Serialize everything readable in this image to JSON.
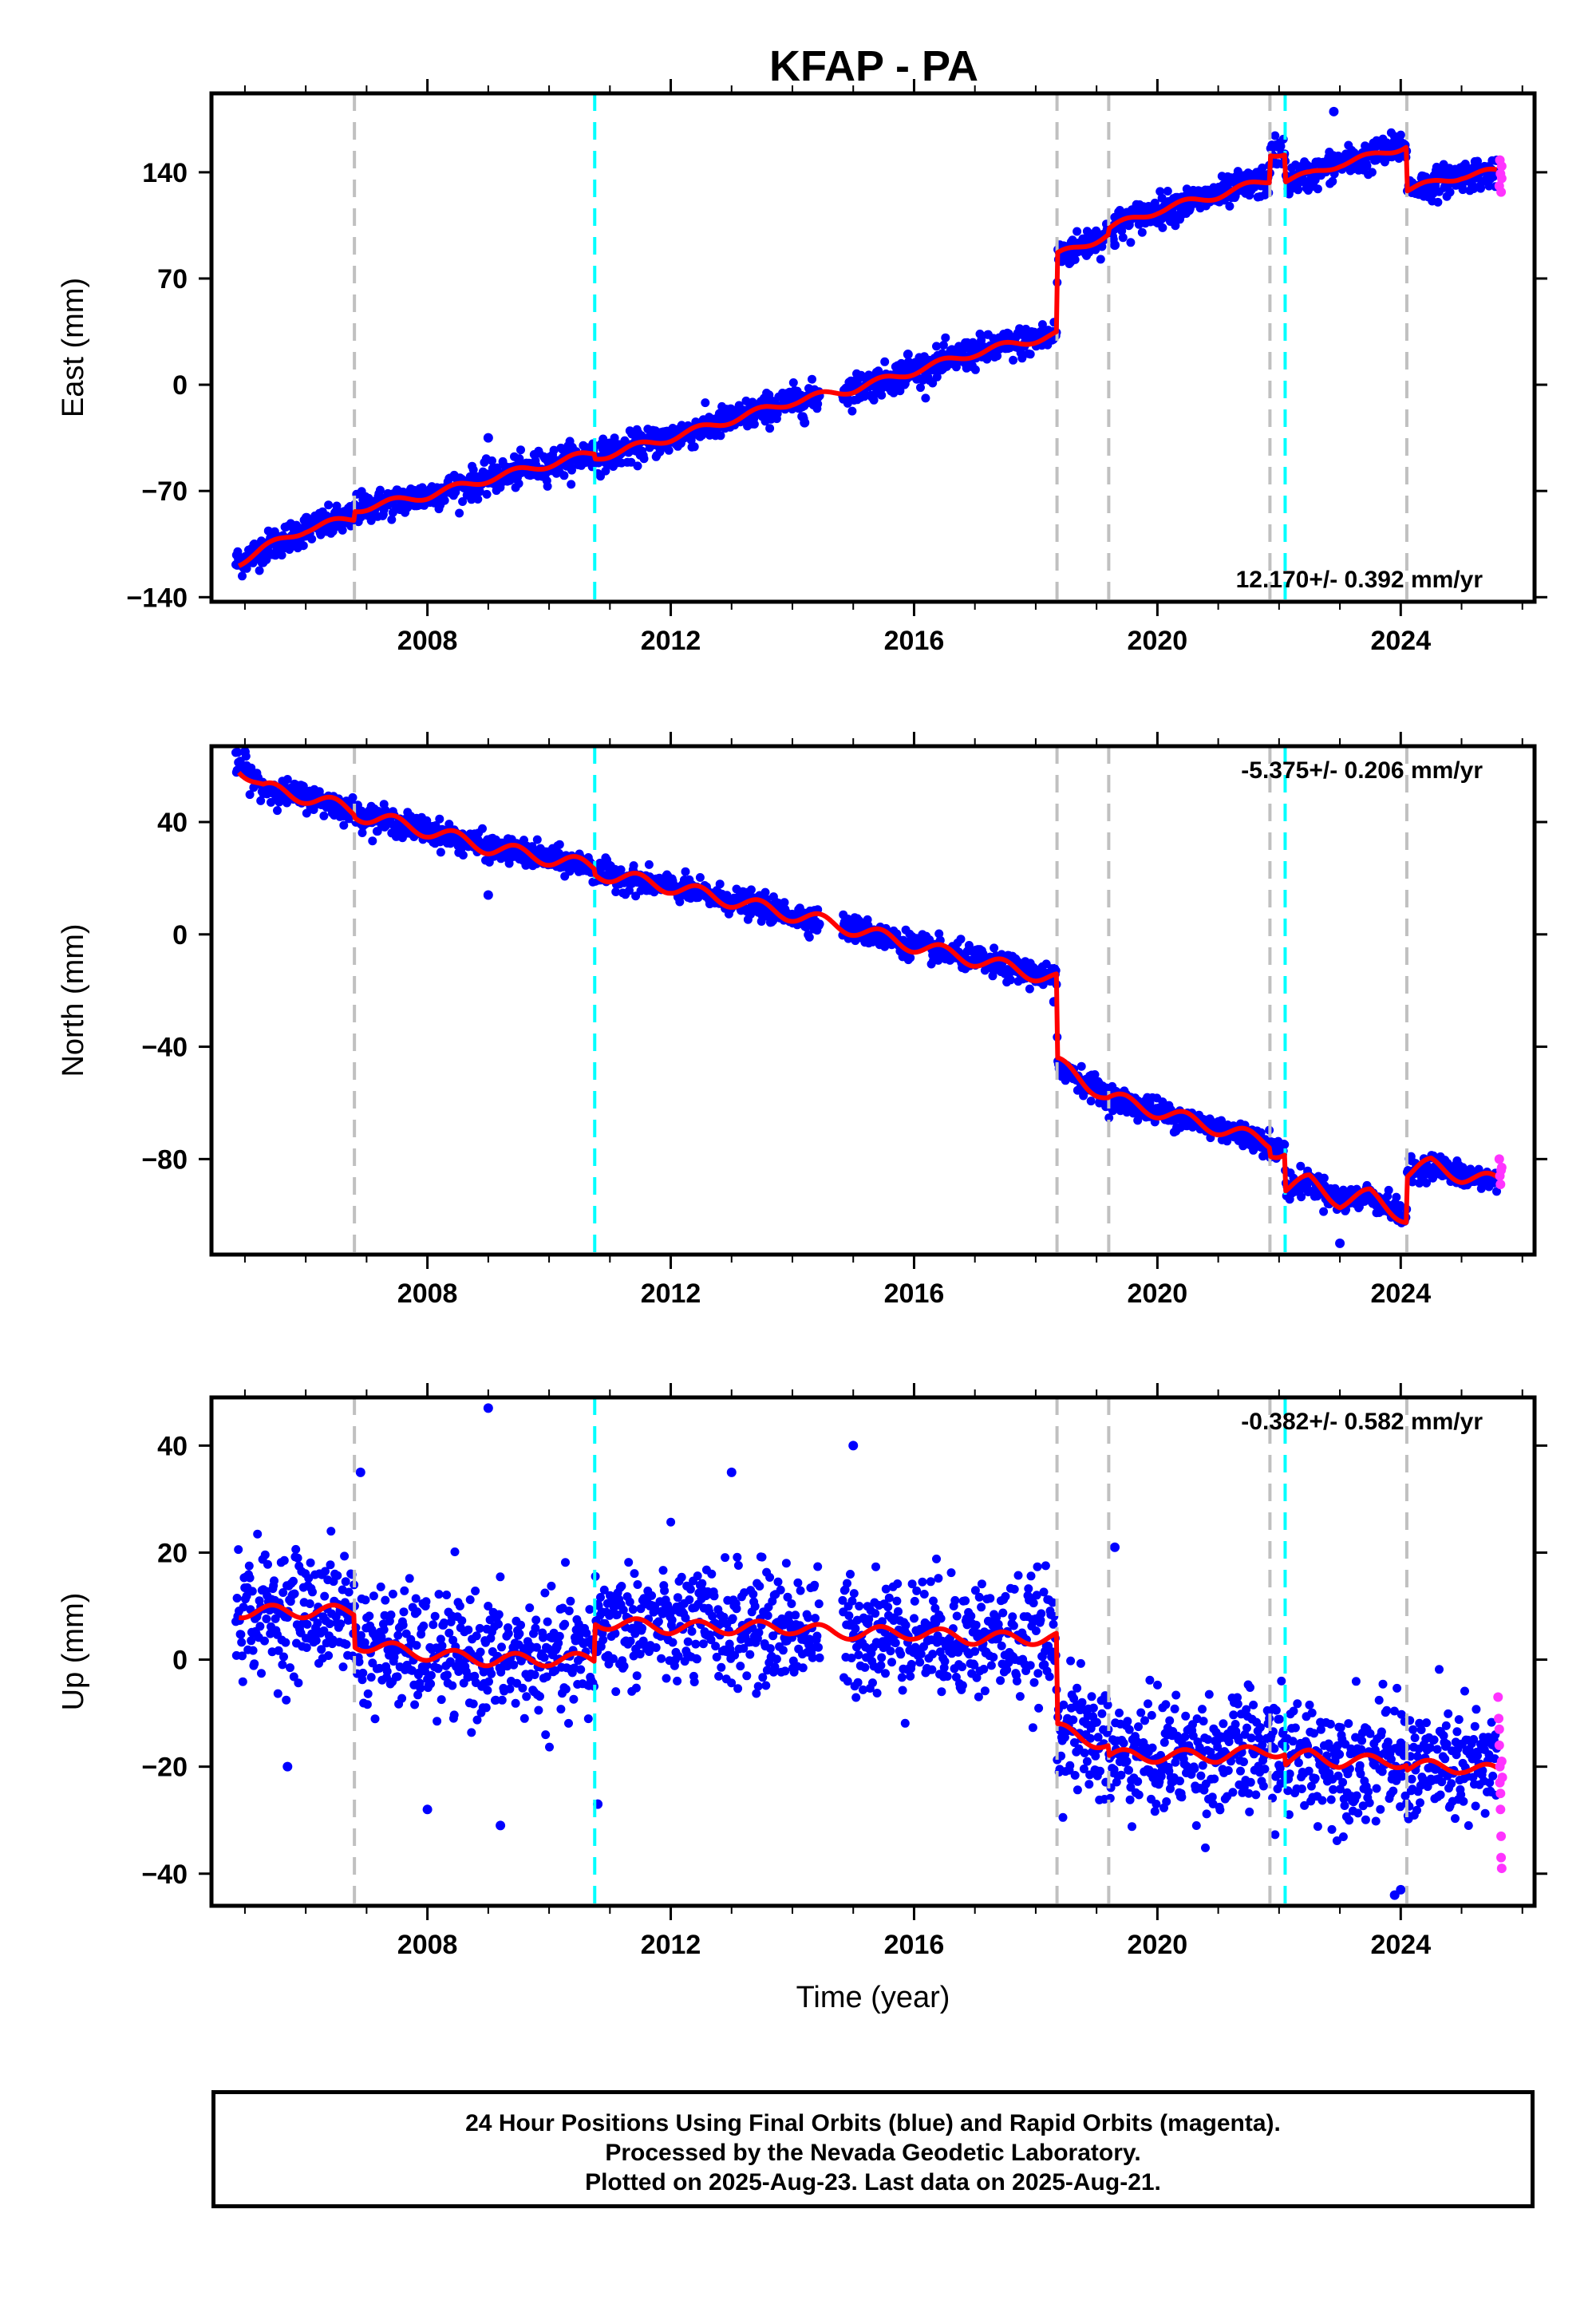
{
  "title": "KFAP - PA",
  "colors": {
    "final_orbits": "#0000ff",
    "rapid_orbits": "#ff33ff",
    "model": "#ff0000",
    "equipment_change": "#c0c0c0",
    "earthquake": "#00ffff"
  },
  "x_axis": {
    "label": "Time (year)",
    "range": [
      2004.45,
      2026.2
    ],
    "major_ticks": [
      2008,
      2012,
      2016,
      2020,
      2024
    ],
    "minor_ticks": [
      2005,
      2006,
      2007,
      2009,
      2010,
      2011,
      2013,
      2014,
      2015,
      2017,
      2018,
      2019,
      2021,
      2022,
      2023,
      2025,
      2026
    ]
  },
  "event_lines": {
    "gray": [
      2006.8,
      2018.35,
      2019.2,
      2021.85
    ],
    "cyan": [
      2010.75,
      2022.1
    ],
    "gray_late": [
      2024.1
    ]
  },
  "footer": {
    "line1": "24 Hour Positions Using Final Orbits (blue) and Rapid Orbits (magenta).",
    "line2": "Processed by the Nevada Geodetic Laboratory.",
    "line3": "Plotted on 2025-Aug-23. Last data on 2025-Aug-21."
  },
  "chart_data": [
    {
      "type": "scatter",
      "component": "east",
      "ylabel": "East (mm)",
      "ylim": [
        -143,
        192
      ],
      "yticks": [
        -140,
        -70,
        0,
        70,
        140
      ],
      "ytick_labels": [
        "−140",
        "−70",
        "0",
        "70",
        "140"
      ],
      "rate_text": "12.170+/- 0.392 mm/yr",
      "scatter_sd": 5,
      "model": [
        [
          2004.9,
          -117
        ],
        [
          2005.3,
          -108
        ],
        [
          2006.0,
          -95
        ],
        [
          2006.79,
          -88
        ],
        [
          2006.81,
          -82
        ],
        [
          2008.0,
          -73
        ],
        [
          2009.0,
          -62
        ],
        [
          2010.74,
          -45
        ],
        [
          2010.76,
          -48
        ],
        [
          2012.0,
          -35
        ],
        [
          2013.0,
          -23
        ],
        [
          2014.0,
          -11
        ],
        [
          2015.0,
          -3
        ],
        [
          2016.0,
          9
        ],
        [
          2017.0,
          21
        ],
        [
          2018.34,
          33
        ],
        [
          2018.36,
          85
        ],
        [
          2019.19,
          99
        ],
        [
          2019.21,
          103
        ],
        [
          2020.0,
          115
        ],
        [
          2021.0,
          125
        ],
        [
          2021.84,
          135
        ],
        [
          2021.86,
          153
        ],
        [
          2022.09,
          153
        ],
        [
          2022.11,
          135
        ],
        [
          2022.5,
          138
        ],
        [
          2023.0,
          146
        ],
        [
          2023.5,
          150
        ],
        [
          2024.09,
          158
        ],
        [
          2024.11,
          129
        ],
        [
          2024.5,
          132
        ],
        [
          2025.0,
          138
        ],
        [
          2025.58,
          140
        ]
      ],
      "outliers": [
        [
          2009.0,
          -35
        ],
        [
          2015.9,
          20
        ],
        [
          2014.2,
          -25
        ],
        [
          2022.9,
          180
        ],
        [
          2019.3,
          92
        ]
      ],
      "rapid_points": [
        [
          2025.62,
          131
        ],
        [
          2025.63,
          148
        ],
        [
          2025.64,
          139
        ],
        [
          2025.65,
          127
        ],
        [
          2025.66,
          144
        ],
        [
          2025.66,
          136
        ]
      ]
    },
    {
      "type": "scatter",
      "component": "north",
      "ylabel": "North (mm)",
      "ylim": [
        -114,
        67
      ],
      "yticks": [
        -80,
        -40,
        0,
        40
      ],
      "ytick_labels": [
        "−80",
        "−40",
        "0",
        "40"
      ],
      "rate_text": "-5.375+/- 0.206 mm/yr",
      "scatter_sd": 2.2,
      "model": [
        [
          2004.9,
          60
        ],
        [
          2005.3,
          52
        ],
        [
          2006.0,
          49
        ],
        [
          2006.79,
          44
        ],
        [
          2006.81,
          43
        ],
        [
          2008.0,
          37
        ],
        [
          2009.0,
          31
        ],
        [
          2010.74,
          24
        ],
        [
          2010.76,
          22
        ],
        [
          2012.0,
          17
        ],
        [
          2013.0,
          12
        ],
        [
          2014.0,
          7
        ],
        [
          2015.0,
          2
        ],
        [
          2016.0,
          -4
        ],
        [
          2017.0,
          -9
        ],
        [
          2018.34,
          -16
        ],
        [
          2018.36,
          -46
        ],
        [
          2019.19,
          -58
        ],
        [
          2019.21,
          -58
        ],
        [
          2020.0,
          -63
        ],
        [
          2021.0,
          -69
        ],
        [
          2021.84,
          -74
        ],
        [
          2021.86,
          -77
        ],
        [
          2022.09,
          -77
        ],
        [
          2022.11,
          -90
        ],
        [
          2022.5,
          -88
        ],
        [
          2023.0,
          -95
        ],
        [
          2023.5,
          -93
        ],
        [
          2024.09,
          -101
        ],
        [
          2024.11,
          -85
        ],
        [
          2024.5,
          -82
        ],
        [
          2025.0,
          -86
        ],
        [
          2025.58,
          -88
        ]
      ],
      "outliers": [
        [
          2005.0,
          65
        ],
        [
          2009.0,
          14
        ],
        [
          2018.3,
          -24
        ],
        [
          2023.0,
          -110
        ]
      ],
      "rapid_points": [
        [
          2025.62,
          -80
        ],
        [
          2025.63,
          -86
        ],
        [
          2025.64,
          -89
        ],
        [
          2025.65,
          -84
        ],
        [
          2025.66,
          -83
        ]
      ]
    },
    {
      "type": "scatter",
      "component": "up",
      "ylabel": "Up (mm)",
      "ylim": [
        -46,
        49
      ],
      "yticks": [
        -40,
        -20,
        0,
        20,
        40
      ],
      "ytick_labels": [
        "−40",
        "−20",
        "0",
        "20",
        "40"
      ],
      "rate_text": "-0.382+/- 0.582 mm/yr",
      "scatter_sd": 5.5,
      "model": [
        [
          2004.9,
          9
        ],
        [
          2006.79,
          9
        ],
        [
          2006.81,
          3
        ],
        [
          2008.0,
          1
        ],
        [
          2009.0,
          0
        ],
        [
          2010.74,
          0
        ],
        [
          2010.76,
          7
        ],
        [
          2012.0,
          6
        ],
        [
          2013.0,
          6
        ],
        [
          2014.0,
          6
        ],
        [
          2014.7,
          5
        ],
        [
          2015.0,
          5
        ],
        [
          2016.0,
          5
        ],
        [
          2017.0,
          4
        ],
        [
          2018.34,
          4
        ],
        [
          2018.36,
          -13
        ],
        [
          2019.19,
          -16
        ],
        [
          2019.21,
          -18
        ],
        [
          2020.0,
          -18
        ],
        [
          2021.0,
          -18
        ],
        [
          2021.84,
          -17
        ],
        [
          2021.86,
          -17
        ],
        [
          2022.09,
          -17
        ],
        [
          2022.11,
          -19
        ],
        [
          2022.5,
          -18
        ],
        [
          2023.0,
          -19
        ],
        [
          2023.5,
          -19
        ],
        [
          2024.09,
          -19
        ],
        [
          2024.11,
          -20
        ],
        [
          2024.5,
          -20
        ],
        [
          2025.0,
          -20
        ],
        [
          2025.58,
          -21
        ]
      ],
      "outliers": [
        [
          2009.0,
          47
        ],
        [
          2015.0,
          40
        ],
        [
          2013.0,
          35
        ],
        [
          2019.3,
          21
        ],
        [
          2006.9,
          35
        ],
        [
          2008.0,
          -28
        ],
        [
          2009.2,
          -31
        ],
        [
          2023.9,
          -44
        ],
        [
          2024.0,
          -43
        ],
        [
          2010.8,
          -27
        ],
        [
          2005.7,
          -20
        ]
      ],
      "rapid_points": [
        [
          2025.6,
          -7
        ],
        [
          2025.61,
          -11
        ],
        [
          2025.62,
          -13
        ],
        [
          2025.62,
          -16
        ],
        [
          2025.63,
          -20
        ],
        [
          2025.63,
          -23
        ],
        [
          2025.64,
          -25
        ],
        [
          2025.64,
          -28
        ],
        [
          2025.65,
          -33
        ],
        [
          2025.65,
          -37
        ],
        [
          2025.66,
          -39
        ],
        [
          2025.66,
          -19
        ],
        [
          2025.67,
          -22
        ]
      ]
    }
  ]
}
